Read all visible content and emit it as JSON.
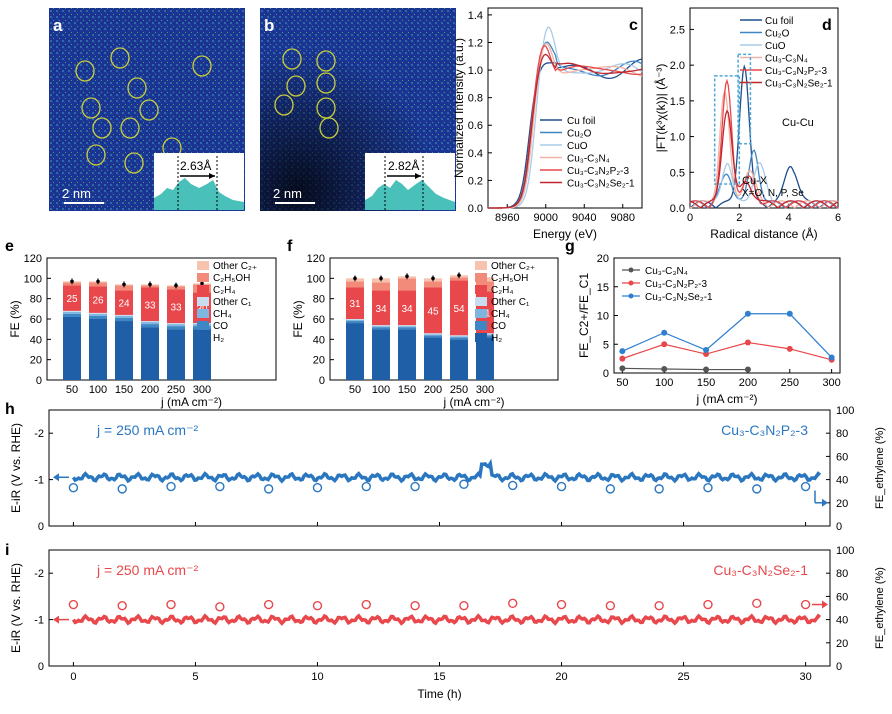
{
  "panels": {
    "a": {
      "letter": "a",
      "scale": "2 nm",
      "spacing": "2.63Å"
    },
    "b": {
      "letter": "b",
      "scale": "2 nm",
      "spacing": "2.82Å"
    },
    "c": {
      "letter": "c"
    },
    "d": {
      "letter": "d"
    },
    "e": {
      "letter": "e"
    },
    "f": {
      "letter": "f"
    },
    "g": {
      "letter": "g"
    },
    "h": {
      "letter": "h"
    },
    "i": {
      "letter": "i"
    }
  },
  "colors": {
    "h2": "#1f5fa8",
    "co": "#3f86c4",
    "ch4": "#7fb6df",
    "otherc1": "#c8def0",
    "c2h4": "#e8474b",
    "c2h5oh": "#f28b7a",
    "otherc2": "#f7c2ae",
    "cu3c3n4": "#555555",
    "p": "#e8474b",
    "se": "#2f7fd0",
    "blue_trace": "#2a77c0",
    "red_trace": "#e8474b"
  },
  "chart_data": [
    {
      "id": "c",
      "type": "line",
      "xlabel": "Energy (eV)",
      "ylabel": "Normalized Intensity (a.u.)",
      "xlim": [
        8940,
        9100
      ],
      "ylim": [
        0,
        1.45
      ],
      "xticks": [
        8960,
        9000,
        9040,
        9080
      ],
      "yticks": [
        0.0,
        0.2,
        0.4,
        0.6,
        0.8,
        1.0,
        1.2,
        1.4
      ],
      "legend": "lower-right",
      "series": [
        {
          "name": "Cu foil",
          "color": "#1f4e8c",
          "edge": 8982,
          "peak": 1.07
        },
        {
          "name": "Cu₂O",
          "color": "#3f86c4",
          "edge": 8985,
          "peak": 1.18
        },
        {
          "name": "CuO",
          "color": "#a9cbe8",
          "edge": 8988,
          "peak": 1.3
        },
        {
          "name": "Cu₃-C₃N₄",
          "color": "#f3b3a4",
          "edge": 8986,
          "peak": 1.22
        },
        {
          "name": "Cu₃-C₃N₂P₂-3",
          "color": "#e8474b",
          "edge": 8984,
          "peak": 1.25
        },
        {
          "name": "Cu₃-C₃N₂Se₂-1",
          "color": "#c0262b",
          "edge": 8984,
          "peak": 1.2
        }
      ]
    },
    {
      "id": "d",
      "type": "line",
      "xlabel": "Radical distance (Å)",
      "ylabel": "|FT(k³χ(k))| (Å⁻³)",
      "xlim": [
        0,
        6
      ],
      "ylim": [
        0,
        2.8
      ],
      "xticks": [
        0,
        2,
        4,
        6
      ],
      "yticks": [
        0.0,
        0.5,
        1.0,
        1.5,
        2.0,
        2.5
      ],
      "legend": "top-right",
      "annotations": [
        "Cu-Cu",
        "Cu-X",
        "X=O, N, P, Se"
      ],
      "series": [
        {
          "name": "Cu foil",
          "color": "#1f4e8c"
        },
        {
          "name": "Cu₂O",
          "color": "#3f86c4"
        },
        {
          "name": "CuO",
          "color": "#a9cbe8"
        },
        {
          "name": "Cu₃-C₃N₄",
          "color": "#f3b3a4"
        },
        {
          "name": "Cu₃-C₃N₂P₂-3",
          "color": "#e8474b"
        },
        {
          "name": "Cu₃-C₃N₂Se₂-1",
          "color": "#c0262b"
        }
      ]
    },
    {
      "id": "e",
      "type": "bar",
      "xlabel": "j (mA cm⁻²)",
      "ylabel": "FE (%)",
      "ylim": [
        0,
        120
      ],
      "yticks": [
        0,
        20,
        40,
        60,
        80,
        100,
        120
      ],
      "categories": [
        "50",
        "100",
        "150",
        "200",
        "250",
        "300"
      ],
      "series": [
        {
          "name": "H₂",
          "values": [
            62,
            60,
            58,
            52,
            50,
            50
          ]
        },
        {
          "name": "CO",
          "values": [
            3,
            3,
            3,
            3,
            3,
            3
          ]
        },
        {
          "name": "CH₄",
          "values": [
            2,
            2,
            2,
            2,
            2,
            2
          ]
        },
        {
          "name": "Other C₁",
          "values": [
            1,
            1,
            1,
            1,
            1,
            1
          ]
        },
        {
          "name": "C₂H₄",
          "values": [
            25,
            26,
            24,
            33,
            33,
            30
          ]
        },
        {
          "name": "C₂H₅OH",
          "values": [
            3,
            4,
            5,
            2,
            3,
            8
          ]
        },
        {
          "name": "Other C₂₊",
          "values": [
            1,
            1,
            1,
            1,
            1,
            1
          ]
        }
      ],
      "labels": [
        "25",
        "26",
        "24",
        "33",
        "33",
        "30"
      ]
    },
    {
      "id": "f",
      "type": "bar",
      "xlabel": "j (mA cm⁻²)",
      "ylabel": "FE (%)",
      "ylim": [
        0,
        120
      ],
      "yticks": [
        0,
        20,
        40,
        60,
        80,
        100,
        120
      ],
      "categories": [
        "50",
        "100",
        "150",
        "200",
        "250",
        "300"
      ],
      "series": [
        {
          "name": "H₂",
          "values": [
            56,
            50,
            50,
            42,
            40,
            42
          ]
        },
        {
          "name": "CO",
          "values": [
            2,
            2,
            2,
            2,
            2,
            2
          ]
        },
        {
          "name": "CH₄",
          "values": [
            1,
            1,
            1,
            1,
            1,
            1
          ]
        },
        {
          "name": "Other C₁",
          "values": [
            1,
            1,
            1,
            1,
            1,
            1
          ]
        },
        {
          "name": "C₂H₄",
          "values": [
            31,
            34,
            34,
            45,
            54,
            41
          ]
        },
        {
          "name": "C₂H₅OH",
          "values": [
            6,
            8,
            12,
            6,
            3,
            10
          ]
        },
        {
          "name": "Other C₂₊",
          "values": [
            3,
            4,
            2,
            3,
            2,
            4
          ]
        }
      ],
      "labels": [
        "31",
        "34",
        "34",
        "45",
        "54",
        "41"
      ]
    },
    {
      "id": "g",
      "type": "line",
      "xlabel": "j (mA cm⁻²)",
      "ylabel": "FE_C2+/FE_C1",
      "xlim": [
        40,
        310
      ],
      "ylim": [
        0,
        20
      ],
      "xticks": [
        50,
        100,
        150,
        200,
        250,
        300
      ],
      "yticks": [
        0,
        5,
        10,
        15,
        20
      ],
      "legend": "top-left",
      "series": [
        {
          "name": "Cu₃-C₃N₄",
          "x": [
            50,
            100,
            150,
            200
          ],
          "y": [
            0.8,
            0.7,
            0.6,
            0.6
          ]
        },
        {
          "name": "Cu₃-C₃N₂P₂-3",
          "x": [
            50,
            100,
            150,
            200,
            250,
            300
          ],
          "y": [
            2.5,
            5.0,
            3.3,
            5.3,
            4.2,
            2.3
          ]
        },
        {
          "name": "Cu₃-C₃N₂Se₂-1",
          "x": [
            50,
            100,
            150,
            200,
            250,
            300
          ],
          "y": [
            3.8,
            7.0,
            4.0,
            10.3,
            10.3,
            2.7
          ]
        }
      ]
    },
    {
      "id": "h",
      "type": "scatter",
      "xlabel": "Time (h)",
      "ylabel": "E-iR (V vs. RHE)",
      "y2label": "FE_ethylene (%)",
      "xlim": [
        -1,
        31
      ],
      "ylim": [
        0,
        -2.5
      ],
      "y2lim": [
        0,
        100
      ],
      "xticks": [
        0,
        5,
        10,
        15,
        20,
        25,
        30
      ],
      "yticks": [
        0,
        -1,
        -2
      ],
      "y2ticks": [
        0,
        20,
        40,
        60,
        80,
        100
      ],
      "current": "j = 250 mA cm⁻²",
      "sample": "Cu₃-C₃N₂P₂-3",
      "potential": -1.05,
      "fe_x": [
        0,
        2,
        4,
        6,
        8,
        10,
        12,
        14,
        16,
        18,
        20,
        22,
        24,
        26,
        28,
        30
      ],
      "fe_y": [
        33,
        32,
        34,
        34,
        32,
        33,
        34,
        34,
        36,
        35,
        34,
        32,
        32,
        33,
        32,
        34
      ]
    },
    {
      "id": "i",
      "type": "scatter",
      "xlabel": "Time (h)",
      "ylabel": "E-iR (V vs. RHE)",
      "y2label": "FE_ethylene (%)",
      "xlim": [
        -1,
        31
      ],
      "ylim": [
        0,
        -2.5
      ],
      "y2lim": [
        0,
        100
      ],
      "xticks": [
        0,
        5,
        10,
        15,
        20,
        25,
        30
      ],
      "yticks": [
        0,
        -1,
        -2
      ],
      "y2ticks": [
        0,
        20,
        40,
        60,
        80,
        100
      ],
      "current": "j = 250 mA cm⁻²",
      "sample": "Cu₃-C₃N₂Se₂-1",
      "potential": -1.0,
      "fe_x": [
        0,
        2,
        4,
        6,
        8,
        10,
        12,
        14,
        16,
        18,
        20,
        22,
        24,
        26,
        28,
        30
      ],
      "fe_y": [
        53,
        52,
        53,
        51,
        53,
        52,
        53,
        52,
        52,
        54,
        53,
        52,
        52,
        53,
        54,
        53
      ]
    }
  ]
}
